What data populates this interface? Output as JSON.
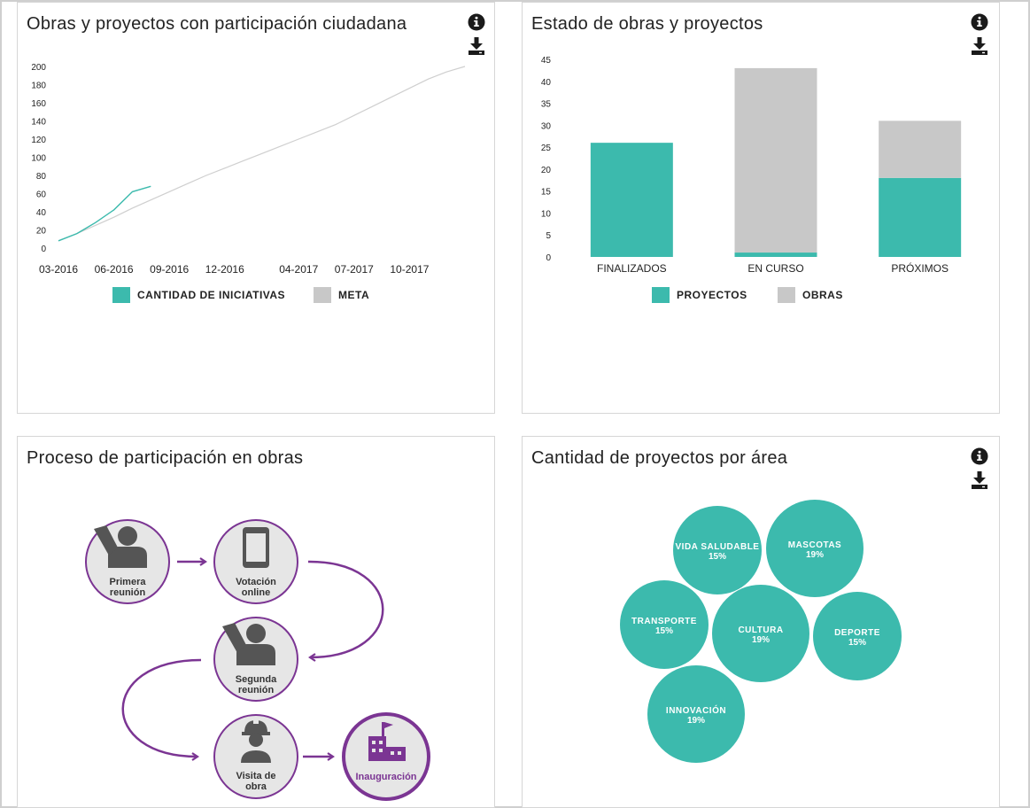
{
  "colors": {
    "teal": "#3cbaad",
    "gray": "#c8c8c8",
    "purple": "#7b3593",
    "dark": "#555555",
    "line_gray": "#cfcfcf"
  },
  "panels": {
    "line_chart": {
      "title": "Obras y proyectos con participación ciudadana",
      "info_icon": "info-icon",
      "download_icon": "download-icon"
    },
    "bar_chart": {
      "title": "Estado de obras y proyectos",
      "info_icon": "info-icon",
      "download_icon": "download-icon"
    },
    "process": {
      "title": "Proceso de participación en obras"
    },
    "bubbles": {
      "title": "Cantidad de proyectos por área",
      "info_icon": "info-icon",
      "download_icon": "download-icon"
    }
  },
  "chart_data": [
    {
      "type": "line",
      "title": "Obras y proyectos con participación ciudadana",
      "x_ticks": [
        "03-2016",
        "06-2016",
        "09-2016",
        "12-2016",
        "04-2017",
        "07-2017",
        "10-2017"
      ],
      "y_ticks": [
        0,
        20,
        40,
        60,
        80,
        100,
        120,
        140,
        160,
        180,
        200
      ],
      "ylim": [
        0,
        200
      ],
      "xlim": [
        "03-2016",
        "01-2018"
      ],
      "series": [
        {
          "name": "CANTIDAD DE INICIATIVAS",
          "color": "#3cbaad",
          "x": [
            "03-2016",
            "04-2016",
            "05-2016",
            "06-2016",
            "07-2016",
            "08-2016"
          ],
          "y": [
            8,
            16,
            28,
            42,
            62,
            68
          ]
        },
        {
          "name": "META",
          "color": "#cfcfcf",
          "x": [
            "03-2016",
            "04-2016",
            "05-2016",
            "06-2016",
            "07-2016",
            "08-2016",
            "09-2016",
            "10-2016",
            "11-2016",
            "12-2016",
            "01-2017",
            "02-2017",
            "03-2017",
            "04-2017",
            "05-2017",
            "06-2017",
            "07-2017",
            "08-2017",
            "09-2017",
            "10-2017",
            "11-2017",
            "12-2017",
            "01-2018"
          ],
          "y": [
            8,
            16,
            25,
            34,
            44,
            53,
            62,
            71,
            80,
            88,
            96,
            104,
            112,
            120,
            128,
            136,
            146,
            156,
            166,
            176,
            186,
            194,
            200
          ]
        }
      ],
      "legend": [
        "CANTIDAD DE INICIATIVAS",
        "META"
      ],
      "legend_position": "bottom"
    },
    {
      "type": "bar",
      "stacked": true,
      "title": "Estado de obras y proyectos",
      "categories": [
        "FINALIZADOS",
        "EN CURSO",
        "PRÓXIMOS"
      ],
      "series": [
        {
          "name": "PROYECTOS",
          "color": "#3cbaad",
          "values": [
            26,
            1,
            18
          ]
        },
        {
          "name": "OBRAS",
          "color": "#c8c8c8",
          "values": [
            0,
            42,
            13
          ]
        }
      ],
      "y_ticks": [
        0,
        5,
        10,
        15,
        20,
        25,
        30,
        35,
        40,
        45
      ],
      "ylim": [
        0,
        45
      ],
      "legend": [
        "PROYECTOS",
        "OBRAS"
      ],
      "legend_position": "bottom"
    }
  ],
  "bubbles": [
    {
      "label": "VIDA SALUDABLE",
      "pct": "15%",
      "value": 15
    },
    {
      "label": "MASCOTAS",
      "pct": "19%",
      "value": 19
    },
    {
      "label": "TRANSPORTE",
      "pct": "15%",
      "value": 15
    },
    {
      "label": "CULTURA",
      "pct": "19%",
      "value": 19
    },
    {
      "label": "DEPORTE",
      "pct": "15%",
      "value": 15
    },
    {
      "label": "INNOVACIÓN",
      "pct": "19%",
      "value": 19
    }
  ],
  "process": {
    "steps": [
      {
        "line1": "Primera",
        "line2": "reunión",
        "icon": "person-hand-raised-icon"
      },
      {
        "line1": "Votación",
        "line2": "online",
        "icon": "smartphone-icon"
      },
      {
        "line1": "Segunda",
        "line2": "reunión",
        "icon": "person-hand-raised-icon"
      },
      {
        "line1": "Visita de",
        "line2": "obra",
        "icon": "hard-hat-worker-icon"
      },
      {
        "line1": "Inauguración",
        "line2": "",
        "icon": "factory-building-icon"
      }
    ]
  }
}
